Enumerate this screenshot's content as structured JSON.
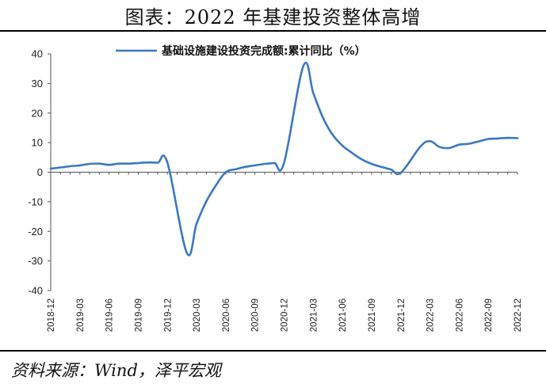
{
  "title": "图表：2022 年基建投资整体高增",
  "source": "资料来源：Wind，泽平宏观",
  "chart_data": {
    "type": "line",
    "legend_position": "top-center",
    "grid": false,
    "ylim": [
      -40,
      40
    ],
    "yticks": [
      40,
      30,
      20,
      10,
      0,
      -10,
      -20,
      -30,
      -40
    ],
    "xticks": [
      "2018-12",
      "2019-03",
      "2019-06",
      "2019-09",
      "2019-12",
      "2020-03",
      "2020-06",
      "2020-09",
      "2020-12",
      "2021-03",
      "2021-06",
      "2021-09",
      "2021-12",
      "2022-03",
      "2022-06",
      "2022-09",
      "2022-12"
    ],
    "x": [
      "2018-12",
      "2019-02",
      "2019-03",
      "2019-04",
      "2019-05",
      "2019-06",
      "2019-07",
      "2019-08",
      "2019-09",
      "2019-10",
      "2019-11",
      "2019-12",
      "2020-02",
      "2020-03",
      "2020-04",
      "2020-05",
      "2020-06",
      "2020-07",
      "2020-08",
      "2020-09",
      "2020-10",
      "2020-11",
      "2020-12",
      "2021-02",
      "2021-03",
      "2021-04",
      "2021-05",
      "2021-06",
      "2021-07",
      "2021-08",
      "2021-09",
      "2021-10",
      "2021-11",
      "2021-12",
      "2022-02",
      "2022-03",
      "2022-04",
      "2022-05",
      "2022-06",
      "2022-07",
      "2022-08",
      "2022-09",
      "2022-10",
      "2022-11",
      "2022-12"
    ],
    "series": [
      {
        "name": "基础设施建设投资完成额:累计同比（%）",
        "color": "#3a78c2",
        "values": [
          1.2,
          2.0,
          2.3,
          2.8,
          2.9,
          2.5,
          2.9,
          2.9,
          3.1,
          3.3,
          3.2,
          3.2,
          -27.3,
          -17.4,
          -9.9,
          -4.4,
          0.0,
          1.0,
          1.8,
          2.3,
          2.8,
          3.1,
          3.2,
          36.0,
          26.8,
          18.4,
          12.6,
          9.0,
          6.5,
          4.3,
          2.8,
          1.8,
          0.9,
          -0.2,
          8.6,
          10.5,
          8.5,
          8.2,
          9.3,
          9.6,
          10.4,
          11.2,
          11.4,
          11.6,
          11.5
        ]
      }
    ]
  }
}
